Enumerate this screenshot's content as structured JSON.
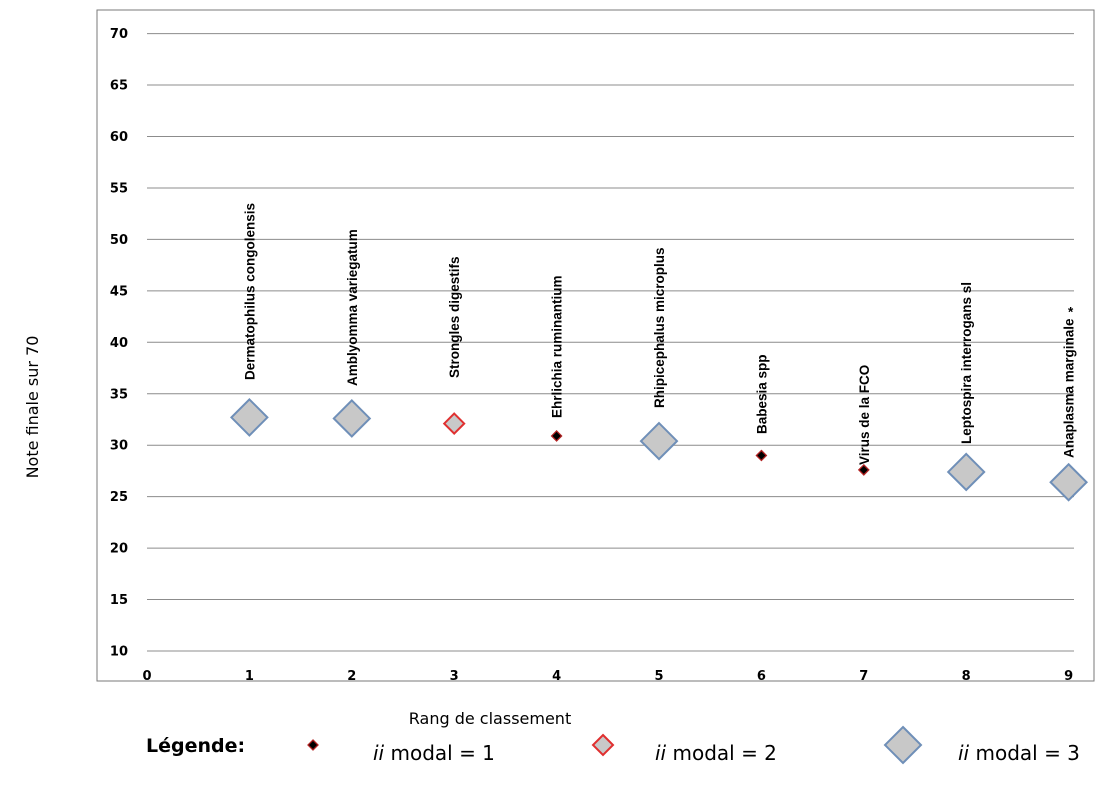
{
  "chart_data": {
    "type": "scatter",
    "xlabel": "Rang de classement",
    "ylabel": "Note finale sur 70",
    "xlim": [
      0,
      9
    ],
    "ylim": [
      10,
      70
    ],
    "x_ticks": [
      0,
      1,
      2,
      3,
      4,
      5,
      6,
      7,
      8,
      9
    ],
    "y_ticks": [
      10,
      15,
      20,
      25,
      30,
      35,
      40,
      45,
      50,
      55,
      60,
      65,
      70
    ],
    "grid": true,
    "points": [
      {
        "x": 1,
        "y": 32.7,
        "label": "Dermatophilus congolensis",
        "modal": 3
      },
      {
        "x": 2,
        "y": 32.6,
        "label": "Amblyomma variegatum",
        "modal": 3
      },
      {
        "x": 3,
        "y": 32.1,
        "label": "Strongles digestifs",
        "modal": 2
      },
      {
        "x": 4,
        "y": 30.9,
        "label": "Ehrlichia ruminantium",
        "modal": 1
      },
      {
        "x": 5,
        "y": 30.4,
        "label": "Rhipicephalus microplus",
        "modal": 3
      },
      {
        "x": 6,
        "y": 29.0,
        "label": "Babesia spp",
        "modal": 1
      },
      {
        "x": 7,
        "y": 27.6,
        "label": "Virus de la FCO",
        "modal": 1
      },
      {
        "x": 8,
        "y": 27.4,
        "label": "Leptospira interrogans sl",
        "modal": 3
      },
      {
        "x": 9,
        "y": 26.4,
        "label": "Anaplasma marginale",
        "modal": 3,
        "footnote": "*"
      }
    ],
    "marker_styles": {
      "1": {
        "fill": "#000000",
        "stroke": "#b22222"
      },
      "2": {
        "fill": "#c8c8c8",
        "stroke": "#e03030"
      },
      "3": {
        "fill": "#c8c8c8",
        "stroke": "#6f8fb8"
      }
    },
    "legend": {
      "title": "Légende:",
      "items": [
        {
          "modal": 1,
          "italic": "ii",
          "text": " modal = 1"
        },
        {
          "modal": 2,
          "italic": "ii",
          "text": " modal = 2"
        },
        {
          "modal": 3,
          "italic": "ii",
          "text": " modal = 3"
        }
      ]
    }
  }
}
